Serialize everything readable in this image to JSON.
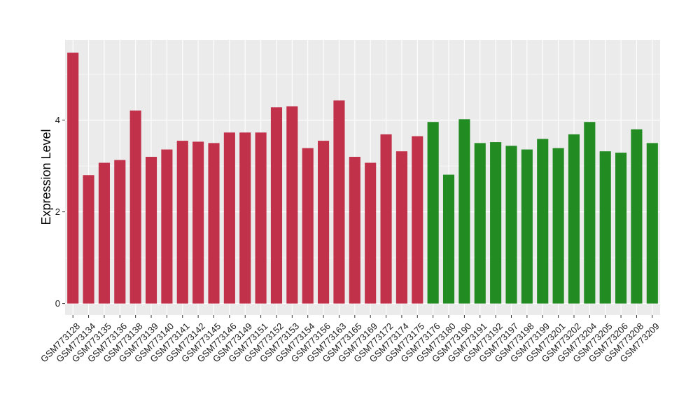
{
  "chart_data": {
    "type": "bar",
    "title": "",
    "xlabel": "",
    "ylabel": "Expression Level",
    "ylim": [
      -0.25,
      5.75
    ],
    "yticks": [
      0,
      2,
      4
    ],
    "grid": true,
    "legend": "none",
    "colors": {
      "group_a": "#C2314A",
      "group_b": "#228B22",
      "panel": "#EBEBEB",
      "grid": "#FFFFFF"
    },
    "categories": [
      "GSM773128",
      "GSM773134",
      "GSM773135",
      "GSM773136",
      "GSM773138",
      "GSM773139",
      "GSM773140",
      "GSM773141",
      "GSM773142",
      "GSM773145",
      "GSM773146",
      "GSM773149",
      "GSM773151",
      "GSM773152",
      "GSM773153",
      "GSM773154",
      "GSM773156",
      "GSM773163",
      "GSM773165",
      "GSM773169",
      "GSM773172",
      "GSM773174",
      "GSM773175",
      "GSM773176",
      "GSM773180",
      "GSM773190",
      "GSM773191",
      "GSM773192",
      "GSM773197",
      "GSM773198",
      "GSM773199",
      "GSM773201",
      "GSM773202",
      "GSM773204",
      "GSM773205",
      "GSM773206",
      "GSM773208",
      "GSM773209"
    ],
    "values": [
      5.47,
      2.8,
      3.07,
      3.13,
      4.21,
      3.2,
      3.36,
      3.55,
      3.53,
      3.5,
      3.73,
      3.73,
      3.73,
      4.28,
      4.3,
      3.39,
      3.55,
      4.43,
      3.2,
      3.07,
      3.69,
      3.32,
      3.65,
      3.96,
      2.81,
      4.02,
      3.5,
      3.52,
      3.44,
      3.36,
      3.59,
      3.39,
      3.69,
      3.96,
      3.32,
      3.29,
      3.8,
      3.5
    ],
    "groups": [
      "a",
      "a",
      "a",
      "a",
      "a",
      "a",
      "a",
      "a",
      "a",
      "a",
      "a",
      "a",
      "a",
      "a",
      "a",
      "a",
      "a",
      "a",
      "a",
      "a",
      "a",
      "a",
      "a",
      "b",
      "b",
      "b",
      "b",
      "b",
      "b",
      "b",
      "b",
      "b",
      "b",
      "b",
      "b",
      "b",
      "b",
      "b"
    ]
  }
}
